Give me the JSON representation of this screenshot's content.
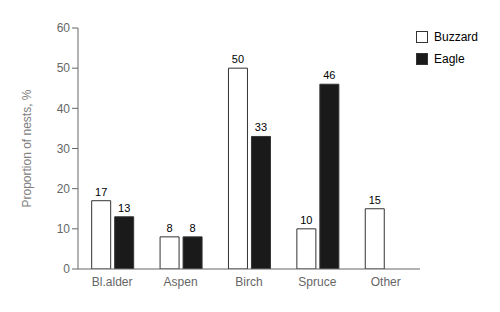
{
  "chart_data": {
    "type": "bar",
    "categories": [
      "Bl.alder",
      "Aspen",
      "Birch",
      "Spruce",
      "Other"
    ],
    "series": [
      {
        "name": "Buzzard",
        "color": "#ffffff",
        "values": [
          17,
          8,
          50,
          10,
          15
        ]
      },
      {
        "name": "Eagle",
        "color": "#1a1a1a",
        "values": [
          13,
          8,
          33,
          46,
          0
        ]
      }
    ],
    "ylabel": "Proportion of nests, %",
    "ylim": [
      0,
      60
    ],
    "yticks": [
      0,
      10,
      20,
      30,
      40,
      50,
      60
    ],
    "legend": "upper right",
    "data_labels": true,
    "grid": false
  }
}
